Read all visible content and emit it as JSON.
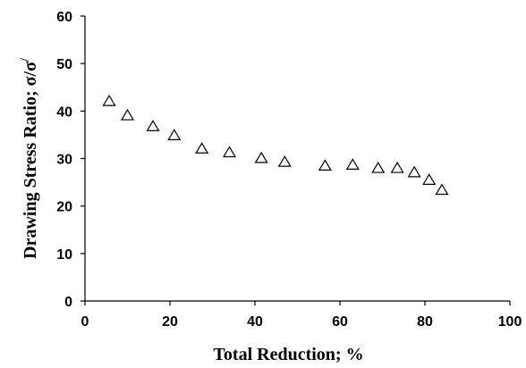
{
  "chart_data": {
    "type": "scatter",
    "title": "",
    "xlabel": "Total Reduction; %",
    "ylabel": "Drawing Stress Ratio; σ/σ",
    "ylabel_superscript": "/",
    "xlim": [
      0,
      100
    ],
    "ylim": [
      0,
      60
    ],
    "xticks": [
      "0",
      "20",
      "40",
      "60",
      "80",
      "100"
    ],
    "yticks": [
      "0",
      "10",
      "20",
      "30",
      "40",
      "50",
      "60"
    ],
    "marker": "triangle-open",
    "grid": false,
    "series": [
      {
        "x": [
          5.7,
          10,
          16,
          21,
          27.5,
          34,
          41.5,
          47,
          56.5,
          63,
          69,
          73.5,
          77.5,
          81,
          84
        ],
        "y": [
          42,
          39,
          36.7,
          34.8,
          32,
          31.2,
          30,
          29.2,
          28.4,
          28.6,
          27.9,
          27.9,
          27,
          25.4,
          23.3
        ]
      }
    ]
  }
}
